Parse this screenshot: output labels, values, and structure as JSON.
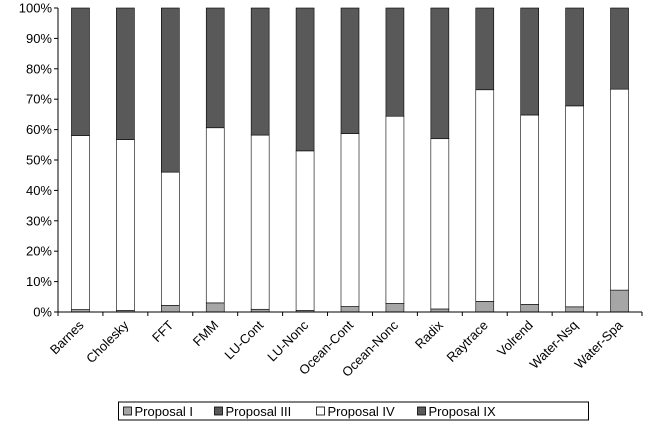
{
  "chart_data": {
    "type": "bar",
    "stacked": true,
    "normalized": true,
    "title": "",
    "xlabel": "",
    "ylabel": "",
    "ylim": [
      0,
      100
    ],
    "y_ticks": [
      "0%",
      "10%",
      "20%",
      "30%",
      "40%",
      "50%",
      "60%",
      "70%",
      "80%",
      "90%",
      "100%"
    ],
    "grid": false,
    "legend_position": "bottom",
    "categories": [
      "Barnes",
      "Cholesky",
      "FFT",
      "FMM",
      "LU-Cont",
      "LU-Nonc",
      "Ocean-Cont",
      "Ocean-Nonc",
      "Radix",
      "Raytrace",
      "Volrend",
      "Water-Nsq",
      "Water-Spa"
    ],
    "series": [
      {
        "name": "Proposal I",
        "color": "#a6a6a6",
        "values": [
          0.8,
          0.5,
          2.2,
          3.0,
          0.9,
          0.5,
          1.8,
          2.8,
          1.0,
          3.5,
          2.5,
          1.7,
          7.2
        ]
      },
      {
        "name": "Proposal III",
        "color": "#595959",
        "values": [
          0,
          0,
          0,
          0,
          0,
          0,
          0,
          0,
          0,
          0,
          0,
          0,
          0
        ]
      },
      {
        "name": "Proposal IV",
        "color": "#ffffff",
        "values": [
          57.2,
          56.2,
          43.8,
          57.6,
          57.3,
          52.5,
          56.9,
          61.6,
          56.0,
          69.6,
          62.3,
          66.1,
          66.1
        ]
      },
      {
        "name": "Proposal IX",
        "color": "#595959",
        "values": [
          42.0,
          43.3,
          54.0,
          39.4,
          41.8,
          47.0,
          41.3,
          35.6,
          43.0,
          26.9,
          35.2,
          32.2,
          26.7
        ]
      }
    ]
  }
}
